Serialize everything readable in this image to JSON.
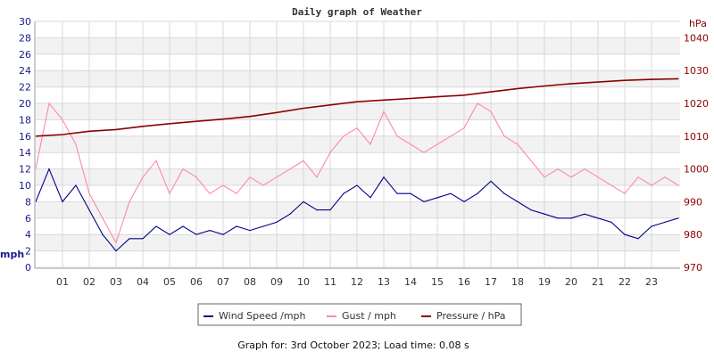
{
  "chart_data": {
    "type": "line",
    "title": "Daily graph of Weather",
    "ylabel_left": "mph",
    "ylabel_right": "hPa",
    "ylim_left": [
      0,
      30
    ],
    "ylim_right": [
      970,
      1045
    ],
    "left_ticks": [
      "0",
      "2",
      "4",
      "6",
      "8",
      "10",
      "12",
      "14",
      "16",
      "18",
      "20",
      "22",
      "24",
      "26",
      "28",
      "30"
    ],
    "right_ticks": [
      "970",
      "980",
      "990",
      "1000",
      "1010",
      "1020",
      "1030",
      "1040"
    ],
    "x_ticks": [
      "01",
      "02",
      "03",
      "04",
      "05",
      "06",
      "07",
      "08",
      "09",
      "10",
      "11",
      "12",
      "13",
      "14",
      "15",
      "16",
      "17",
      "18",
      "19",
      "20",
      "21",
      "22",
      "23"
    ],
    "grid": true,
    "legend_position": "bottom",
    "series": [
      {
        "name": "Wind Speed /mph",
        "color": "#00008b",
        "axis": "left",
        "x": [
          0,
          0.5,
          1,
          1.5,
          2,
          2.5,
          3,
          3.5,
          4,
          4.5,
          5,
          5.5,
          6,
          6.5,
          7,
          7.5,
          8,
          8.5,
          9,
          9.5,
          10,
          10.5,
          11,
          11.5,
          12,
          12.5,
          13,
          13.5,
          14,
          14.5,
          15,
          15.5,
          16,
          16.5,
          17,
          17.5,
          18,
          18.5,
          19,
          19.5,
          20,
          20.5,
          21,
          21.5,
          22,
          22.5,
          23,
          23.5,
          24
        ],
        "values": [
          8,
          12,
          8,
          10,
          7,
          4,
          2,
          3.5,
          3.5,
          5,
          4,
          5,
          4,
          4.5,
          4,
          5,
          4.5,
          5,
          5.5,
          6.5,
          8,
          7,
          7,
          9,
          10,
          8.5,
          11,
          9,
          9,
          8,
          8.5,
          9,
          8,
          9,
          10.5,
          9,
          8,
          7,
          6.5,
          6,
          6,
          6.5,
          6,
          5.5,
          4,
          3.5,
          5,
          5.5,
          6
        ]
      },
      {
        "name": "Gust / mph",
        "color": "#ff88aa",
        "axis": "left",
        "x": [
          0,
          0.5,
          1,
          1.5,
          2,
          2.5,
          3,
          3.5,
          4,
          4.5,
          5,
          5.5,
          6,
          6.5,
          7,
          7.5,
          8,
          8.5,
          9,
          9.5,
          10,
          10.5,
          11,
          11.5,
          12,
          12.5,
          13,
          13.5,
          14,
          14.5,
          15,
          15.5,
          16,
          16.5,
          17,
          17.5,
          18,
          18.5,
          19,
          19.5,
          20,
          20.5,
          21,
          21.5,
          22,
          22.5,
          23,
          23.5,
          24
        ],
        "values": [
          12,
          20,
          18,
          15,
          9,
          6,
          3,
          8,
          11,
          13,
          9,
          12,
          11,
          9,
          10,
          9,
          11,
          10,
          11,
          12,
          13,
          11,
          14,
          16,
          17,
          15,
          19,
          16,
          15,
          14,
          15,
          16,
          17,
          20,
          19,
          16,
          15,
          13,
          11,
          12,
          11,
          12,
          11,
          10,
          9,
          11,
          10,
          11,
          10
        ]
      },
      {
        "name": "Pressure / hPa",
        "color": "#8b0000",
        "axis": "right",
        "x": [
          0,
          1,
          2,
          3,
          4,
          5,
          6,
          7,
          8,
          9,
          10,
          11,
          12,
          13,
          14,
          15,
          16,
          17,
          18,
          19,
          20,
          21,
          22,
          23,
          24
        ],
        "values": [
          1010,
          1010.5,
          1011.5,
          1012,
          1013,
          1013.8,
          1014.5,
          1015.2,
          1016,
          1017.2,
          1018.5,
          1019.5,
          1020.5,
          1021,
          1021.5,
          1022,
          1022.5,
          1023.5,
          1024.5,
          1025.3,
          1026,
          1026.5,
          1027,
          1027.3,
          1027.5
        ]
      }
    ]
  },
  "footer": "Graph for: 3rd October 2023; Load time: 0.08 s"
}
